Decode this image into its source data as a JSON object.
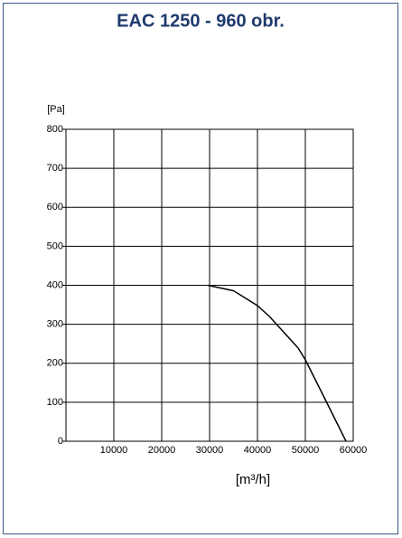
{
  "chart_data": {
    "type": "line",
    "title": "EAC 1250 - 960 obr.",
    "y_label": "[Pa]",
    "x_label": "[m³/h]",
    "x": [
      29600,
      35000,
      40000,
      42500,
      48500,
      50000,
      54000,
      58500
    ],
    "series": [
      {
        "name": "EAC 1250",
        "color": "#000000",
        "values": [
          400,
          386,
          348,
          320,
          239,
          209,
          111,
          0
        ]
      }
    ],
    "xlim": [
      0,
      60000
    ],
    "xticks": [
      10000,
      20000,
      30000,
      40000,
      50000,
      60000
    ],
    "ylim": [
      0,
      800
    ],
    "yticks": [
      0,
      100,
      200,
      300,
      400,
      500,
      600,
      700,
      800
    ],
    "grid": true
  }
}
